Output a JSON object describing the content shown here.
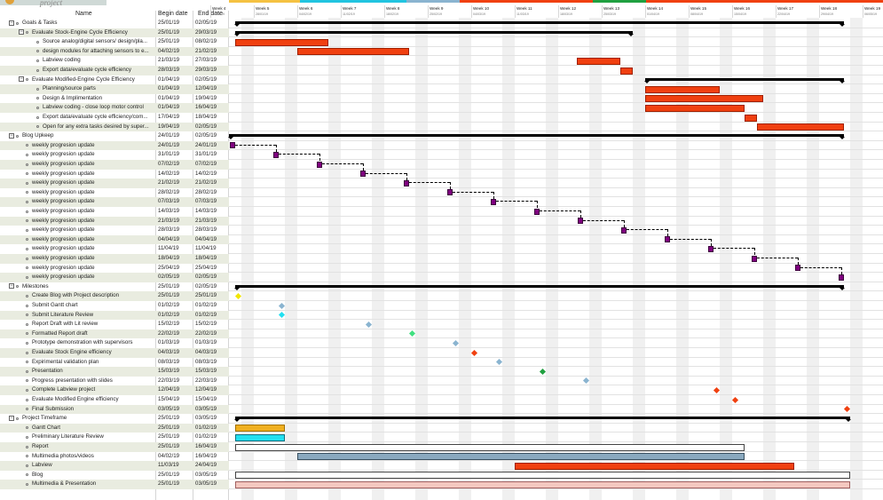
{
  "header": {
    "logo_text": "project",
    "col_name": "Name",
    "col_begin": "Begin date",
    "col_end": "End date"
  },
  "timeline": {
    "weeks": [
      {
        "label": "Week 4",
        "sub": "21/01/19"
      },
      {
        "label": "Week 5",
        "sub": "28/01/19"
      },
      {
        "label": "Week 6",
        "sub": "04/02/19"
      },
      {
        "label": "Week 7",
        "sub": "11/02/19"
      },
      {
        "label": "Week 8",
        "sub": "18/02/19"
      },
      {
        "label": "Week 9",
        "sub": "25/02/19"
      },
      {
        "label": "Week 10",
        "sub": "04/03/19"
      },
      {
        "label": "Week 11",
        "sub": "11/03/19"
      },
      {
        "label": "Week 12",
        "sub": "18/03/19"
      },
      {
        "label": "Week 13",
        "sub": "25/03/19"
      },
      {
        "label": "Week 14",
        "sub": "01/04/19"
      },
      {
        "label": "Week 15",
        "sub": "08/04/19"
      },
      {
        "label": "Week 16",
        "sub": "15/04/19"
      },
      {
        "label": "Week 17",
        "sub": "22/04/19"
      },
      {
        "label": "Week 18",
        "sub": "29/04/19"
      },
      {
        "label": "Week 19",
        "sub": "06/05/19"
      }
    ]
  },
  "rows": [
    {
      "name": "Goals & Tasks",
      "begin": "25/01/19",
      "end": "02/05/19",
      "level": 0,
      "kind": "group",
      "draw": {
        "type": "summary",
        "s": "25/01/19",
        "e": "02/05/19"
      }
    },
    {
      "name": "Evaluate Stock-Engine Cycle Efficiency",
      "begin": "25/01/19",
      "end": "29/03/19",
      "level": 1,
      "kind": "group",
      "draw": {
        "type": "summary",
        "s": "25/01/19",
        "e": "29/03/19"
      }
    },
    {
      "name": "Source analog/digital sensors/ design/pla...",
      "begin": "25/01/19",
      "end": "08/02/19",
      "level": 2,
      "kind": "task",
      "draw": {
        "type": "bar",
        "s": "25/01/19",
        "e": "08/02/19",
        "fill": "#f04010",
        "stroke": "#a02000"
      }
    },
    {
      "name": "design modules for attaching sensors to e...",
      "begin": "04/02/19",
      "end": "21/02/19",
      "level": 2,
      "kind": "task",
      "draw": {
        "type": "bar",
        "s": "04/02/19",
        "e": "21/02/19",
        "fill": "#f04010",
        "stroke": "#a02000"
      }
    },
    {
      "name": "Labview coding",
      "begin": "21/03/19",
      "end": "27/03/19",
      "level": 2,
      "kind": "task",
      "draw": {
        "type": "bar",
        "s": "21/03/19",
        "e": "27/03/19",
        "fill": "#f04010",
        "stroke": "#a02000"
      }
    },
    {
      "name": "Export data/evaluate cycle efficiency",
      "begin": "28/03/19",
      "end": "29/03/19",
      "level": 2,
      "kind": "task",
      "draw": {
        "type": "bar",
        "s": "28/03/19",
        "e": "29/03/19",
        "fill": "#f04010",
        "stroke": "#a02000"
      }
    },
    {
      "name": "Evaluate Modified-Engine Cycle Efficiency",
      "begin": "01/04/19",
      "end": "02/05/19",
      "level": 1,
      "kind": "group",
      "draw": {
        "type": "summary",
        "s": "01/04/19",
        "e": "02/05/19"
      }
    },
    {
      "name": "Planning/source parts",
      "begin": "01/04/19",
      "end": "12/04/19",
      "level": 2,
      "kind": "task",
      "draw": {
        "type": "bar",
        "s": "01/04/19",
        "e": "12/04/19",
        "fill": "#f04010",
        "stroke": "#a02000"
      }
    },
    {
      "name": "Design & Implimentation",
      "begin": "01/04/19",
      "end": "19/04/19",
      "level": 2,
      "kind": "task",
      "draw": {
        "type": "bar",
        "s": "01/04/19",
        "e": "19/04/19",
        "fill": "#f04010",
        "stroke": "#a02000"
      }
    },
    {
      "name": "Labview coding - close loop motor control",
      "begin": "01/04/19",
      "end": "16/04/19",
      "level": 2,
      "kind": "task",
      "draw": {
        "type": "bar",
        "s": "01/04/19",
        "e": "16/04/19",
        "fill": "#f04010",
        "stroke": "#a02000"
      }
    },
    {
      "name": "Export data/evaluate cycle efficiency/com...",
      "begin": "17/04/19",
      "end": "18/04/19",
      "level": 2,
      "kind": "task",
      "draw": {
        "type": "bar",
        "s": "17/04/19",
        "e": "18/04/19",
        "fill": "#f04010",
        "stroke": "#a02000"
      }
    },
    {
      "name": "Open for any extra tasks desired by super...",
      "begin": "19/04/19",
      "end": "02/05/19",
      "level": 2,
      "kind": "task",
      "draw": {
        "type": "bar",
        "s": "19/04/19",
        "e": "02/05/19",
        "fill": "#f04010",
        "stroke": "#a02000"
      }
    },
    {
      "name": "Blog Upkeep",
      "begin": "24/01/19",
      "end": "02/05/19",
      "level": 0,
      "kind": "group",
      "draw": {
        "type": "summary",
        "s": "24/01/19",
        "e": "02/05/19"
      }
    },
    {
      "name": "weekly progresion update",
      "begin": "24/01/19",
      "end": "24/01/19",
      "level": 1,
      "kind": "task",
      "draw": {
        "type": "square",
        "s": "24/01/19"
      }
    },
    {
      "name": "weekly progresion update",
      "begin": "31/01/19",
      "end": "31/01/19",
      "level": 1,
      "kind": "task",
      "draw": {
        "type": "square",
        "s": "31/01/19"
      }
    },
    {
      "name": "weekly progresion update",
      "begin": "07/02/19",
      "end": "07/02/19",
      "level": 1,
      "kind": "task",
      "draw": {
        "type": "square",
        "s": "07/02/19"
      }
    },
    {
      "name": "weekly progresion update",
      "begin": "14/02/19",
      "end": "14/02/19",
      "level": 1,
      "kind": "task",
      "draw": {
        "type": "square",
        "s": "14/02/19"
      }
    },
    {
      "name": "weekly progresion update",
      "begin": "21/02/19",
      "end": "21/02/19",
      "level": 1,
      "kind": "task",
      "draw": {
        "type": "square",
        "s": "21/02/19"
      }
    },
    {
      "name": "weekly progresion update",
      "begin": "28/02/19",
      "end": "28/02/19",
      "level": 1,
      "kind": "task",
      "draw": {
        "type": "square",
        "s": "28/02/19"
      }
    },
    {
      "name": "weekly progresion update",
      "begin": "07/03/19",
      "end": "07/03/19",
      "level": 1,
      "kind": "task",
      "draw": {
        "type": "square",
        "s": "07/03/19"
      }
    },
    {
      "name": "weekly progresion update",
      "begin": "14/03/19",
      "end": "14/03/19",
      "level": 1,
      "kind": "task",
      "draw": {
        "type": "square",
        "s": "14/03/19"
      }
    },
    {
      "name": "weekly progresion update",
      "begin": "21/03/19",
      "end": "21/03/19",
      "level": 1,
      "kind": "task",
      "draw": {
        "type": "square",
        "s": "21/03/19"
      }
    },
    {
      "name": "weekly progresion update",
      "begin": "28/03/19",
      "end": "28/03/19",
      "level": 1,
      "kind": "task",
      "draw": {
        "type": "square",
        "s": "28/03/19"
      }
    },
    {
      "name": "weekly progresion update",
      "begin": "04/04/19",
      "end": "04/04/19",
      "level": 1,
      "kind": "task",
      "draw": {
        "type": "square",
        "s": "04/04/19"
      }
    },
    {
      "name": "weekly progresion update",
      "begin": "11/04/19",
      "end": "11/04/19",
      "level": 1,
      "kind": "task",
      "draw": {
        "type": "square",
        "s": "11/04/19"
      }
    },
    {
      "name": "weekly progresion update",
      "begin": "18/04/19",
      "end": "18/04/19",
      "level": 1,
      "kind": "task",
      "draw": {
        "type": "square",
        "s": "18/04/19"
      }
    },
    {
      "name": "weekly progresion update",
      "begin": "25/04/19",
      "end": "25/04/19",
      "level": 1,
      "kind": "task",
      "draw": {
        "type": "square",
        "s": "25/04/19"
      }
    },
    {
      "name": "weekly progresion update",
      "begin": "02/05/19",
      "end": "02/05/19",
      "level": 1,
      "kind": "task",
      "draw": {
        "type": "square",
        "s": "02/05/19"
      }
    },
    {
      "name": "Milestones",
      "begin": "25/01/19",
      "end": "02/05/19",
      "level": 0,
      "kind": "group",
      "draw": {
        "type": "summary",
        "s": "25/01/19",
        "e": "02/05/19"
      }
    },
    {
      "name": "Create Blog with Project description",
      "begin": "25/01/19",
      "end": "25/01/19",
      "level": 1,
      "kind": "task",
      "draw": {
        "type": "diamond",
        "s": "25/01/19",
        "fill": "#f2e600"
      }
    },
    {
      "name": "Submit Gantt chart",
      "begin": "01/02/19",
      "end": "01/02/19",
      "level": 1,
      "kind": "task",
      "draw": {
        "type": "diamond",
        "s": "01/02/19",
        "fill": "#8ab4d0"
      }
    },
    {
      "name": "Submit Literature Review",
      "begin": "01/02/19",
      "end": "01/02/19",
      "level": 1,
      "kind": "task",
      "draw": {
        "type": "diamond",
        "s": "01/02/19",
        "fill": "#22e0f0"
      }
    },
    {
      "name": "Report Draft with Lit review",
      "begin": "15/02/19",
      "end": "15/02/19",
      "level": 1,
      "kind": "task",
      "draw": {
        "type": "diamond",
        "s": "15/02/19",
        "fill": "#8ab4d0"
      }
    },
    {
      "name": "Formatted Report draft",
      "begin": "22/02/19",
      "end": "22/02/19",
      "level": 1,
      "kind": "task",
      "draw": {
        "type": "diamond",
        "s": "22/02/19",
        "fill": "#40e080"
      }
    },
    {
      "name": "Prototype demonstration with supervisors",
      "begin": "01/03/19",
      "end": "01/03/19",
      "level": 1,
      "kind": "task",
      "draw": {
        "type": "diamond",
        "s": "01/03/19",
        "fill": "#8ab4d0"
      }
    },
    {
      "name": "Evaluate Stock Engine efficiency",
      "begin": "04/03/19",
      "end": "04/03/19",
      "level": 1,
      "kind": "task",
      "draw": {
        "type": "diamond",
        "s": "04/03/19",
        "fill": "#f04010"
      }
    },
    {
      "name": "Expirimental validation plan",
      "begin": "08/03/19",
      "end": "08/03/19",
      "level": 1,
      "kind": "task",
      "draw": {
        "type": "diamond",
        "s": "08/03/19",
        "fill": "#8ab4d0"
      }
    },
    {
      "name": "Presentation",
      "begin": "15/03/19",
      "end": "15/03/19",
      "level": 1,
      "kind": "task",
      "draw": {
        "type": "diamond",
        "s": "15/03/19",
        "fill": "#20a040"
      }
    },
    {
      "name": "Progress presentation with slides",
      "begin": "22/03/19",
      "end": "22/03/19",
      "level": 1,
      "kind": "task",
      "draw": {
        "type": "diamond",
        "s": "22/03/19",
        "fill": "#8ab4d0"
      }
    },
    {
      "name": "Complete Labview project",
      "begin": "12/04/19",
      "end": "12/04/19",
      "level": 1,
      "kind": "task",
      "draw": {
        "type": "diamond",
        "s": "12/04/19",
        "fill": "#f04010"
      }
    },
    {
      "name": "Evaluate Modified Engine efficiency",
      "begin": "15/04/19",
      "end": "15/04/19",
      "level": 1,
      "kind": "task",
      "draw": {
        "type": "diamond",
        "s": "15/04/19",
        "fill": "#f04010"
      }
    },
    {
      "name": "Final Submission",
      "begin": "03/05/19",
      "end": "03/05/19",
      "level": 1,
      "kind": "task",
      "draw": {
        "type": "diamond",
        "s": "03/05/19",
        "fill": "#f04010"
      }
    },
    {
      "name": "Project Timeframe",
      "begin": "25/01/19",
      "end": "03/05/19",
      "level": 0,
      "kind": "group",
      "draw": {
        "type": "summary",
        "s": "25/01/19",
        "e": "03/05/19"
      }
    },
    {
      "name": "Gantt Chart",
      "begin": "25/01/19",
      "end": "01/02/19",
      "level": 1,
      "kind": "task",
      "draw": {
        "type": "bar",
        "s": "25/01/19",
        "e": "01/02/19",
        "fill": "#f0b020",
        "stroke": "#a07000"
      }
    },
    {
      "name": "Preliminary Literature Review",
      "begin": "25/01/19",
      "end": "01/02/19",
      "level": 1,
      "kind": "task",
      "draw": {
        "type": "bar",
        "s": "25/01/19",
        "e": "01/02/19",
        "fill": "#22e0f0",
        "stroke": "#107080"
      }
    },
    {
      "name": "Report",
      "begin": "25/01/19",
      "end": "16/04/19",
      "level": 1,
      "kind": "task",
      "draw": {
        "type": "bar",
        "s": "25/01/19",
        "e": "16/04/19",
        "fill": "#ffffff",
        "stroke": "#444444"
      }
    },
    {
      "name": "Multimedia photos/videos",
      "begin": "04/02/19",
      "end": "16/04/19",
      "level": 1,
      "kind": "task",
      "draw": {
        "type": "bar",
        "s": "04/02/19",
        "e": "16/04/19",
        "fill": "#8aa9bf",
        "stroke": "#3a5060"
      }
    },
    {
      "name": "Labview",
      "begin": "11/03/19",
      "end": "24/04/19",
      "level": 1,
      "kind": "task",
      "draw": {
        "type": "bar",
        "s": "11/03/19",
        "e": "24/04/19",
        "fill": "#f04010",
        "stroke": "#a02000"
      }
    },
    {
      "name": "Blog",
      "begin": "25/01/19",
      "end": "03/05/19",
      "level": 1,
      "kind": "task",
      "draw": {
        "type": "bar",
        "s": "25/01/19",
        "e": "03/05/19",
        "fill": "#ffffff",
        "stroke": "#444444"
      }
    },
    {
      "name": "Multimedia & Presentation",
      "begin": "25/01/19",
      "end": "03/05/19",
      "level": 1,
      "kind": "task",
      "draw": {
        "type": "bar",
        "s": "25/01/19",
        "e": "03/05/19",
        "fill": "#f4c8c0",
        "stroke": "#a06060"
      }
    }
  ]
}
